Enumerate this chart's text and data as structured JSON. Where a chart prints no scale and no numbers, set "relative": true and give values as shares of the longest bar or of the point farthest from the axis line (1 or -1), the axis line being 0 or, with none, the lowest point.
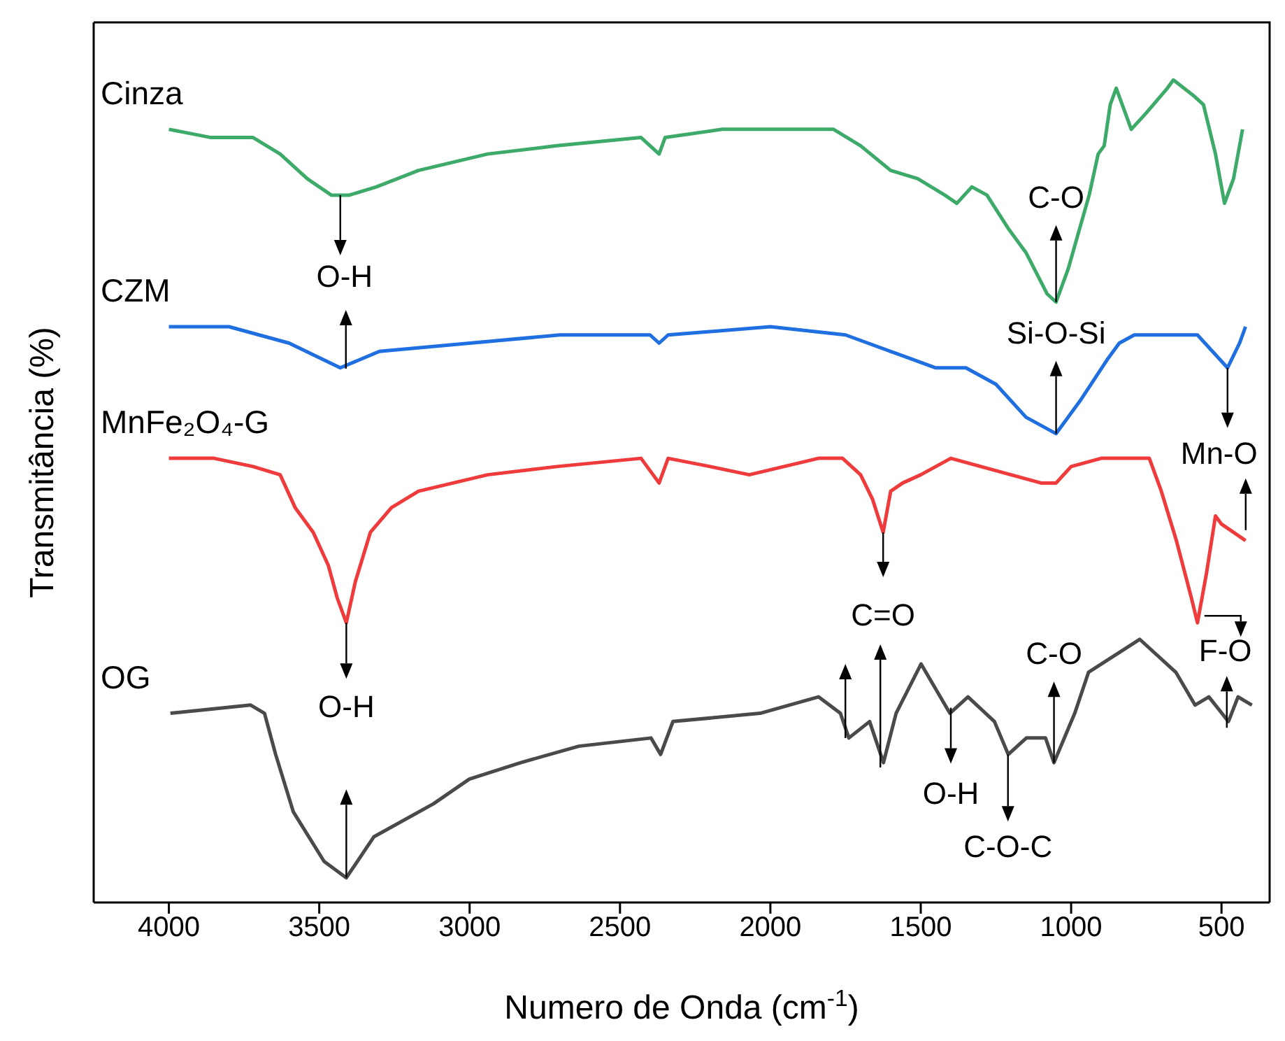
{
  "chart_data": {
    "type": "line",
    "relative": true,
    "xlabel": "Numero de Onda (cm$^{-1}$)",
    "ylabel": "Transmitância (%)",
    "xlim": [
      4250,
      340
    ],
    "xticks": [
      4000,
      3500,
      3000,
      2500,
      2000,
      1500,
      1000,
      500
    ],
    "annotations": [
      {
        "text": "O-H",
        "x": 3430,
        "y": 0.86
      },
      {
        "text": "C-O",
        "x": 1050,
        "y": 0.73
      },
      {
        "text": "Si-O-Si",
        "x": 1050,
        "y": 0.57
      },
      {
        "text": "Mn-O",
        "x": 480,
        "y": 0.65
      },
      {
        "text": "C=O",
        "x": 1625,
        "y": 0.45
      },
      {
        "text": "O-H",
        "x": 3410,
        "y": 0.34
      },
      {
        "text": "F-O",
        "x": 580,
        "y": 0.34
      },
      {
        "text": "O-H",
        "x": 1400,
        "y": 0.23
      },
      {
        "text": "C-O-C",
        "x": 1210,
        "y": 0.18
      },
      {
        "text": "C-O",
        "x": 1057,
        "y": 0.17
      }
    ],
    "series": [
      {
        "name": "Cinza",
        "color": "#3daa6a",
        "x": [
          4000,
          3860,
          3720,
          3630,
          3540,
          3460,
          3400,
          3310,
          3170,
          2940,
          2710,
          2430,
          2370,
          2350,
          2160,
          1880,
          1790,
          1700,
          1600,
          1510,
          1420,
          1380,
          1330,
          1280,
          1210,
          1150,
          1080,
          1050,
          1010,
          940,
          910,
          890,
          870,
          850,
          800,
          750,
          680,
          660,
          590,
          560,
          520,
          490,
          460,
          430
        ],
        "values": [
          0.94,
          0.93,
          0.93,
          0.91,
          0.88,
          0.86,
          0.86,
          0.87,
          0.89,
          0.91,
          0.92,
          0.93,
          0.91,
          0.93,
          0.94,
          0.94,
          0.94,
          0.92,
          0.89,
          0.88,
          0.86,
          0.85,
          0.87,
          0.86,
          0.82,
          0.79,
          0.74,
          0.73,
          0.77,
          0.86,
          0.91,
          0.92,
          0.97,
          0.99,
          0.94,
          0.96,
          0.99,
          1.0,
          0.98,
          0.97,
          0.91,
          0.85,
          0.88,
          0.94
        ]
      },
      {
        "name": "CZM",
        "color": "#1f6fe0",
        "x": [
          4000,
          3800,
          3600,
          3430,
          3300,
          3000,
          2700,
          2400,
          2370,
          2340,
          2000,
          1750,
          1600,
          1450,
          1350,
          1250,
          1150,
          1050,
          970,
          880,
          840,
          790,
          720,
          650,
          580,
          530,
          480,
          440,
          420
        ],
        "values": [
          0.7,
          0.7,
          0.68,
          0.65,
          0.67,
          0.68,
          0.69,
          0.69,
          0.68,
          0.69,
          0.7,
          0.69,
          0.67,
          0.65,
          0.65,
          0.63,
          0.59,
          0.57,
          0.61,
          0.66,
          0.68,
          0.69,
          0.69,
          0.69,
          0.69,
          0.67,
          0.65,
          0.68,
          0.7
        ]
      },
      {
        "name": "MnFe₂O₄-G",
        "color": "#ef3b3b",
        "x": [
          4000,
          3850,
          3720,
          3630,
          3580,
          3520,
          3470,
          3440,
          3410,
          3380,
          3330,
          3260,
          3170,
          2940,
          2710,
          2430,
          2370,
          2340,
          2200,
          2070,
          1840,
          1760,
          1700,
          1660,
          1625,
          1600,
          1560,
          1500,
          1400,
          1300,
          1200,
          1100,
          1050,
          1000,
          900,
          800,
          740,
          700,
          650,
          600,
          580,
          550,
          520,
          500,
          460,
          420
        ],
        "values": [
          0.54,
          0.54,
          0.53,
          0.52,
          0.48,
          0.45,
          0.41,
          0.37,
          0.34,
          0.39,
          0.45,
          0.48,
          0.5,
          0.52,
          0.53,
          0.54,
          0.51,
          0.54,
          0.53,
          0.52,
          0.54,
          0.54,
          0.52,
          0.49,
          0.45,
          0.5,
          0.51,
          0.52,
          0.54,
          0.53,
          0.52,
          0.51,
          0.51,
          0.53,
          0.54,
          0.54,
          0.54,
          0.5,
          0.44,
          0.37,
          0.34,
          0.4,
          0.47,
          0.46,
          0.45,
          0.44
        ]
      },
      {
        "name": "OG",
        "color": "#4a4a4a",
        "x": [
          3995,
          3728,
          3682,
          3645,
          3586,
          3484,
          3410,
          3318,
          3120,
          3001,
          2830,
          2637,
          2397,
          2365,
          2324,
          2034,
          1840,
          1767,
          1739,
          1670,
          1624,
          1582,
          1499,
          1403,
          1343,
          1255,
          1209,
          1149,
          1085,
          1057,
          988,
          942,
          772,
          652,
          588,
          542,
          477,
          445,
          399
        ],
        "values": [
          0.23,
          0.24,
          0.23,
          0.18,
          0.11,
          0.05,
          0.03,
          0.08,
          0.12,
          0.15,
          0.17,
          0.19,
          0.2,
          0.18,
          0.22,
          0.23,
          0.25,
          0.23,
          0.2,
          0.22,
          0.17,
          0.23,
          0.29,
          0.23,
          0.25,
          0.22,
          0.18,
          0.2,
          0.2,
          0.17,
          0.23,
          0.28,
          0.32,
          0.28,
          0.24,
          0.25,
          0.22,
          0.25,
          0.24
        ]
      }
    ]
  }
}
